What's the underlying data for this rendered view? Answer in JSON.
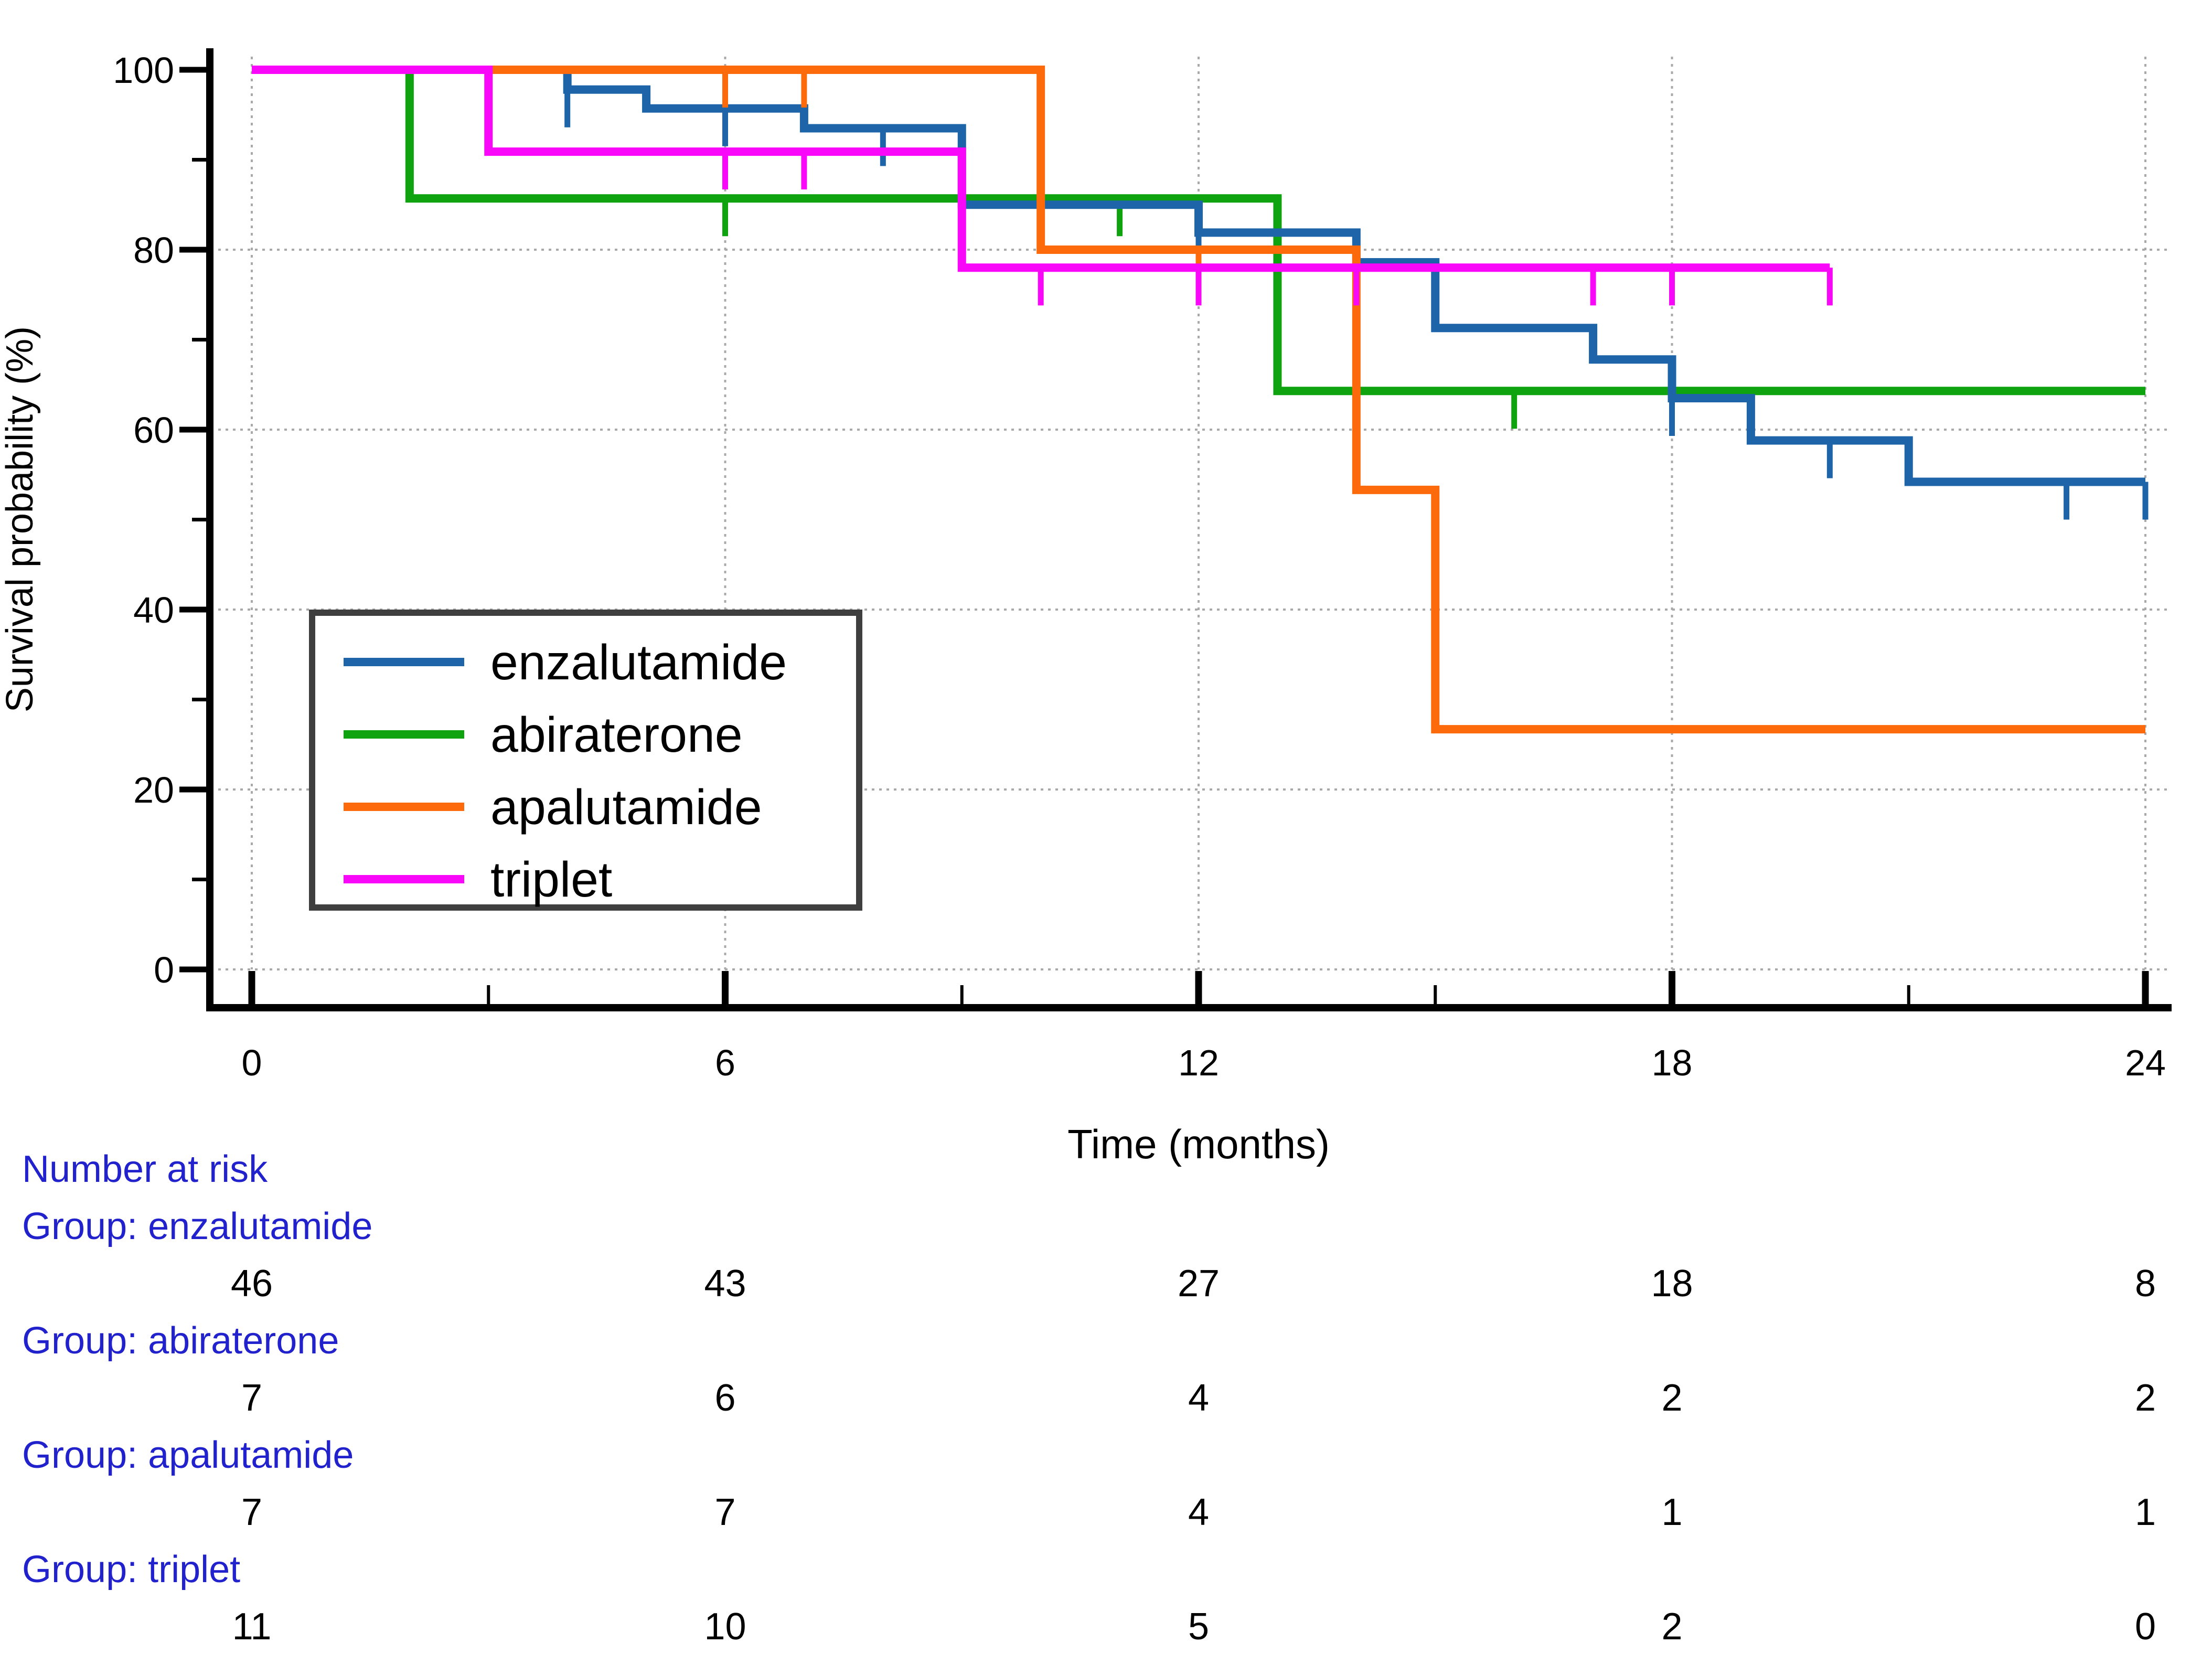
{
  "chart_data": {
    "type": "line",
    "subtype": "kaplan-meier-step",
    "title": "",
    "xlabel": "Time (months)",
    "ylabel": "Survival probability (%)",
    "xlim": [
      0,
      24
    ],
    "ylim": [
      0,
      100
    ],
    "xticks": [
      0,
      6,
      12,
      18,
      24
    ],
    "xticks_minor": [
      3,
      9,
      15,
      21
    ],
    "yticks": [
      100,
      80,
      60,
      40,
      20,
      0
    ],
    "yticks_minor": [
      90,
      70,
      50,
      30,
      10
    ],
    "grid": "dotted gray horizontal lines at 0,20,40,60,80 and vertical at 0,6,12,18,24",
    "legend_position": "inside lower-left",
    "series": [
      {
        "name": "enzalutamide",
        "color": "#1d64a8",
        "steps": [
          [
            0,
            100
          ],
          [
            4,
            97.8
          ],
          [
            5,
            95.7
          ],
          [
            7,
            93.5
          ],
          [
            9,
            85.0
          ],
          [
            12,
            81.9
          ],
          [
            14,
            78.6
          ],
          [
            15,
            71.3
          ],
          [
            17,
            67.8
          ],
          [
            18,
            63.5
          ],
          [
            19,
            58.8
          ],
          [
            21,
            54.2
          ],
          [
            24,
            54.2
          ]
        ],
        "censors": [
          [
            4,
            97.8
          ],
          [
            6,
            95.7
          ],
          [
            8,
            93.5
          ],
          [
            12,
            81.9
          ],
          [
            18,
            63.5
          ],
          [
            20,
            58.8
          ],
          [
            23,
            54.2
          ],
          [
            24,
            54.2
          ]
        ]
      },
      {
        "name": "abiraterone",
        "color": "#0fa30f",
        "steps": [
          [
            0,
            100
          ],
          [
            2,
            85.7
          ],
          [
            13,
            64.3
          ],
          [
            24,
            64.3
          ]
        ],
        "censors": [
          [
            6,
            85.7
          ],
          [
            11,
            85.7
          ],
          [
            16,
            64.3
          ]
        ]
      },
      {
        "name": "apalutamide",
        "color": "#fd6a0c",
        "steps": [
          [
            0,
            100
          ],
          [
            10,
            80.0
          ],
          [
            14,
            53.3
          ],
          [
            15,
            26.7
          ],
          [
            24,
            26.7
          ]
        ],
        "censors": [
          [
            6,
            100
          ],
          [
            7,
            100
          ],
          [
            12,
            80.0
          ]
        ]
      },
      {
        "name": "triplet",
        "color": "#f907f9",
        "steps": [
          [
            0,
            100
          ],
          [
            3,
            90.9
          ],
          [
            9,
            78.0
          ],
          [
            20,
            78.0
          ]
        ],
        "censors": [
          [
            6,
            90.9
          ],
          [
            7,
            90.9
          ],
          [
            10,
            78.0
          ],
          [
            12,
            78.0
          ],
          [
            14,
            78.0
          ],
          [
            17,
            78.0
          ],
          [
            18,
            78.0
          ],
          [
            20,
            78.0
          ]
        ]
      }
    ],
    "legend": [
      "enzalutamide",
      "abiraterone",
      "apalutamide",
      "triplet"
    ],
    "risk_table": {
      "header": "Number at risk",
      "times": [
        0,
        6,
        12,
        18,
        24
      ],
      "groups": [
        {
          "label": "Group: enzalutamide",
          "values": [
            "46",
            "43",
            "27",
            "18",
            "8"
          ]
        },
        {
          "label": "Group: abiraterone",
          "values": [
            "7",
            "6",
            "4",
            "2",
            "2"
          ]
        },
        {
          "label": "Group: apalutamide",
          "values": [
            "7",
            "7",
            "4",
            "1",
            "1"
          ]
        },
        {
          "label": "Group: triplet",
          "values": [
            "11",
            "10",
            "5",
            "2",
            "0"
          ]
        }
      ]
    }
  },
  "colors": {
    "axis": "#000000",
    "grid": "#a9a9a9",
    "tick_label": "#000000",
    "risk_label_blue": "#2222cd",
    "legend_border": "#3f3f3f",
    "background": "#ffffff"
  }
}
